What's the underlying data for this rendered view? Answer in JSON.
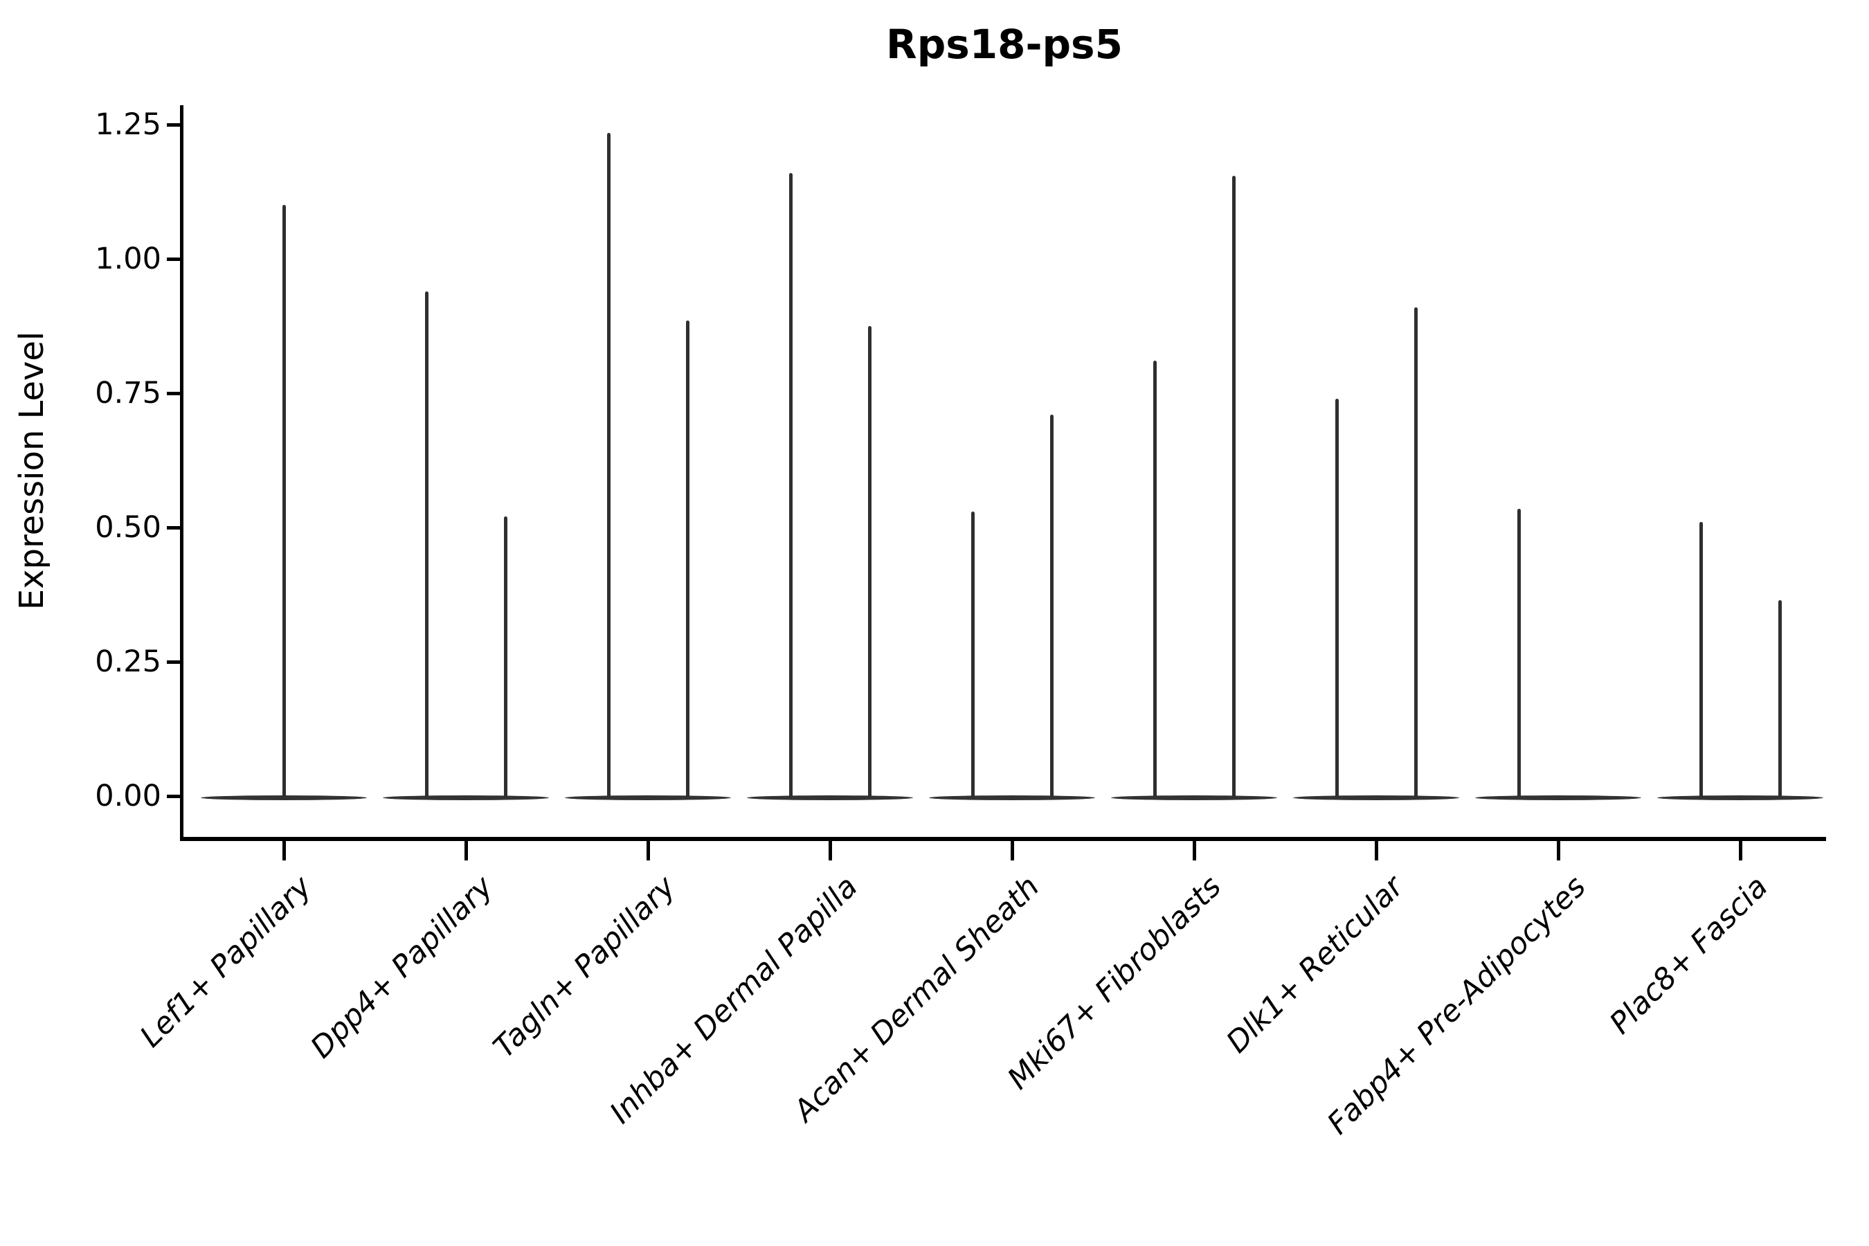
{
  "title": "Rps18-ps5",
  "colors": {
    "violin": "#333333",
    "axis": "#000000",
    "text": "#000000",
    "background": "#ffffff"
  },
  "chart_data": {
    "type": "violin",
    "title": "Rps18-ps5",
    "ylabel": "Expression Level",
    "xlabel": "",
    "ylim": [
      0,
      1.28
    ],
    "grid": false,
    "legend": "none",
    "y_ticks": [
      0,
      0.25,
      0.5,
      0.75,
      1.0,
      1.25
    ],
    "y_tick_labels": [
      "0.00",
      "0.25",
      "0.50",
      "0.75",
      "1.00",
      "1.25"
    ],
    "x_label_rotation": 45,
    "x_label_style": "italic",
    "categories": [
      "Lef1+ Papillary",
      "Dpp4+ Papillary",
      "Tagln+ Papillary",
      "Inhba+ Dermal Papilla",
      "Acan+ Dermal Sheath",
      "Mki67+ Fibroblasts",
      "Dlk1+ Reticular",
      "Fabp4+ Pre-Adipocytes",
      "Plac8+ Fascia"
    ],
    "violins": [
      {
        "category": "Lef1+ Papillary",
        "components": [
          {
            "position": "center",
            "max_expression": 1.1
          }
        ]
      },
      {
        "category": "Dpp4+ Papillary",
        "components": [
          {
            "position": "left",
            "max_expression": 0.94
          },
          {
            "position": "right",
            "max_expression": 0.52
          }
        ]
      },
      {
        "category": "Tagln+ Papillary",
        "components": [
          {
            "position": "left",
            "max_expression": 1.235
          },
          {
            "position": "right",
            "max_expression": 0.885
          }
        ]
      },
      {
        "category": "Inhba+ Dermal Papilla",
        "components": [
          {
            "position": "left",
            "max_expression": 1.16
          },
          {
            "position": "right",
            "max_expression": 0.875
          }
        ]
      },
      {
        "category": "Acan+ Dermal Sheath",
        "components": [
          {
            "position": "left",
            "max_expression": 0.53
          },
          {
            "position": "right",
            "max_expression": 0.71
          }
        ]
      },
      {
        "category": "Mki67+ Fibroblasts",
        "components": [
          {
            "position": "left",
            "max_expression": 0.81
          },
          {
            "position": "right",
            "max_expression": 1.155
          }
        ]
      },
      {
        "category": "Dlk1+ Reticular",
        "components": [
          {
            "position": "left",
            "max_expression": 0.74
          },
          {
            "position": "right",
            "max_expression": 0.91
          }
        ]
      },
      {
        "category": "Fabp4+ Pre-Adipocytes",
        "components": [
          {
            "position": "left",
            "max_expression": 0.535
          }
        ]
      },
      {
        "category": "Plac8+ Fascia",
        "components": [
          {
            "position": "left",
            "max_expression": 0.51
          },
          {
            "position": "right",
            "max_expression": 0.365
          }
        ]
      }
    ],
    "baseline_note": "all distributions concentrated at 0 (wide flat base), thin density spike up to max_expression"
  }
}
